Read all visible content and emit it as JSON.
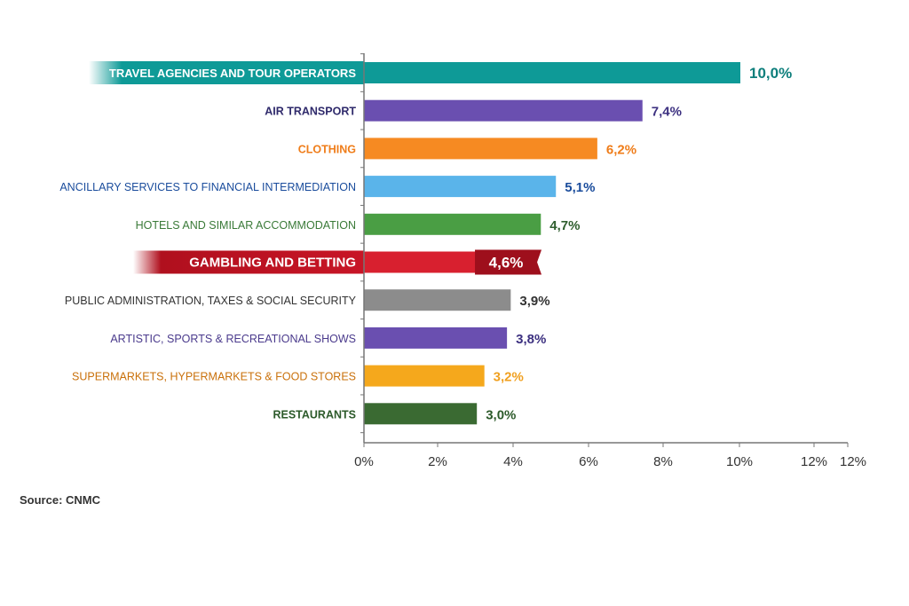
{
  "chart_data": {
    "type": "bar",
    "orientation": "horizontal",
    "categories": [
      "TRAVEL AGENCIES AND TOUR OPERATORS",
      "AIR TRANSPORT",
      "CLOTHING",
      "ANCILLARY SERVICES TO FINANCIAL INTERMEDIATION",
      "HOTELS AND SIMILAR ACCOMMODATION",
      "GAMBLING AND BETTING",
      "PUBLIC ADMINISTRATION, TAXES & SOCIAL SECURITY",
      "ARTISTIC, SPORTS & RECREATIONAL SHOWS",
      "SUPERMARKETS, HYPERMARKETS & FOOD STORES",
      "RESTAURANTS"
    ],
    "values": [
      10.0,
      7.4,
      6.2,
      5.1,
      4.7,
      4.6,
      3.9,
      3.8,
      3.2,
      3.0
    ],
    "data_labels": [
      "10,0%",
      "7,4%",
      "6,2%",
      "5,1%",
      "4,7%",
      "4,6%",
      "3,9%",
      "3,8%",
      "3,2%",
      "3,0%"
    ],
    "bar_colors": [
      "#0e9a97",
      "#6a4fb0",
      "#f68a22",
      "#5ab4ea",
      "#4a9e44",
      "#d8202f",
      "#8c8c8c",
      "#6a4fb0",
      "#f5a81c",
      "#3a6a32"
    ],
    "label_colors": [
      "#ffffff",
      "#2f2a6b",
      "#ef7d1a",
      "#1a4c9c",
      "#3a7a38",
      "#ffffff",
      "#333333",
      "#4a3a8c",
      "#c9700a",
      "#2c5a2a"
    ],
    "value_colors": [
      "#0e7f7c",
      "#3c3080",
      "#ef7d1a",
      "#1a4c9c",
      "#2f5e2e",
      "#ffffff",
      "#333333",
      "#3c3080",
      "#f0a020",
      "#2c5a2a"
    ],
    "highlighted": [
      "TRAVEL AGENCIES AND TOUR OPERATORS",
      "GAMBLING AND BETTING"
    ],
    "x_ticks": [
      "0%",
      "2%",
      "4%",
      "6%",
      "8%",
      "10%",
      "12%",
      "12%"
    ],
    "xlim": [
      0,
      12.9
    ],
    "xlabel": "",
    "ylabel": "",
    "title": "",
    "grid": false,
    "legend": "none"
  },
  "source": "Source: CNMC"
}
